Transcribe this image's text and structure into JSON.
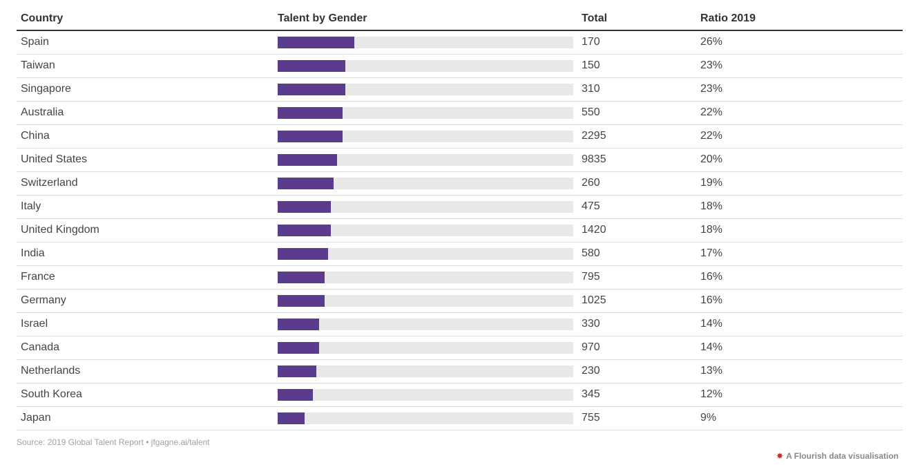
{
  "header": {
    "country": "Country",
    "bar": "Talent by Gender",
    "total": "Total",
    "ratio": "Ratio 2019"
  },
  "rows": [
    {
      "country": "Spain",
      "total": "170",
      "ratio": "26%"
    },
    {
      "country": "Taiwan",
      "total": "150",
      "ratio": "23%"
    },
    {
      "country": "Singapore",
      "total": "310",
      "ratio": "23%"
    },
    {
      "country": "Australia",
      "total": "550",
      "ratio": "22%"
    },
    {
      "country": "China",
      "total": "2295",
      "ratio": "22%"
    },
    {
      "country": "United States",
      "total": "9835",
      "ratio": "20%"
    },
    {
      "country": "Switzerland",
      "total": "260",
      "ratio": "19%"
    },
    {
      "country": "Italy",
      "total": "475",
      "ratio": "18%"
    },
    {
      "country": "United Kingdom",
      "total": "1420",
      "ratio": "18%"
    },
    {
      "country": "India",
      "total": "580",
      "ratio": "17%"
    },
    {
      "country": "France",
      "total": "795",
      "ratio": "16%"
    },
    {
      "country": "Germany",
      "total": "1025",
      "ratio": "16%"
    },
    {
      "country": "Israel",
      "total": "330",
      "ratio": "14%"
    },
    {
      "country": "Canada",
      "total": "970",
      "ratio": "14%"
    },
    {
      "country": "Netherlands",
      "total": "230",
      "ratio": "13%"
    },
    {
      "country": "South Korea",
      "total": "345",
      "ratio": "12%"
    },
    {
      "country": "Japan",
      "total": "755",
      "ratio": "9%"
    }
  ],
  "chart_data": {
    "type": "table",
    "columns": [
      "Country",
      "Talent by Gender",
      "Total",
      "Ratio 2019"
    ],
    "categories": [
      "Spain",
      "Taiwan",
      "Singapore",
      "Australia",
      "China",
      "United States",
      "Switzerland",
      "Italy",
      "United Kingdom",
      "India",
      "France",
      "Germany",
      "Israel",
      "Canada",
      "Netherlands",
      "South Korea",
      "Japan"
    ],
    "totals": [
      170,
      150,
      310,
      550,
      2295,
      9835,
      260,
      475,
      1420,
      580,
      795,
      1025,
      330,
      970,
      230,
      345,
      755
    ],
    "ratios": [
      26,
      23,
      23,
      22,
      22,
      20,
      19,
      18,
      18,
      17,
      16,
      16,
      14,
      14,
      13,
      12,
      9
    ],
    "bar_max": 100,
    "colors": {
      "bar": "#5a3b8c",
      "track": "#e8e8e8"
    }
  },
  "footer": {
    "source": "Source: 2019 Global Talent Report • jfgagne.ai/talent",
    "credit": "A Flourish data visualisation",
    "credit_icon": "flourish-logo-icon"
  }
}
